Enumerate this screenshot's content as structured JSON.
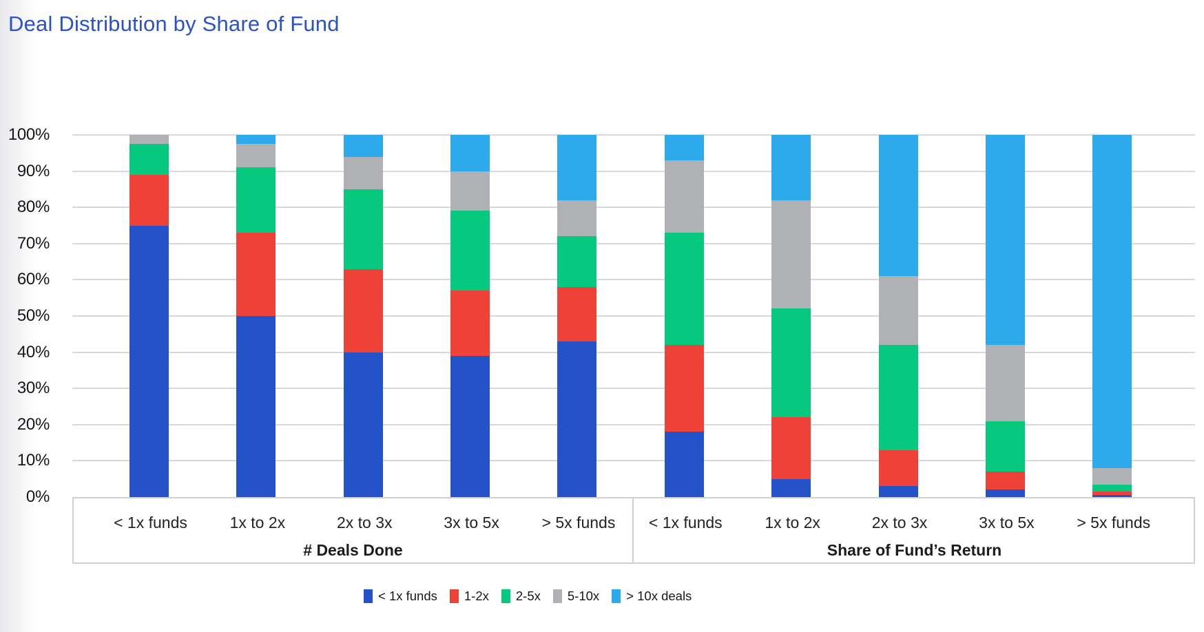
{
  "title": "Deal Distribution by Share of Fund",
  "colors": {
    "title": "#2b51ce",
    "axis_text": "#17171b",
    "grid": "#d8d8dc",
    "box_border": "#cfcfd4",
    "background": "#ffffff",
    "edge_fade": "#e9e9ec"
  },
  "chart_data": {
    "type": "bar",
    "stacked": true,
    "percent": true,
    "ylim": [
      0,
      100
    ],
    "grid": true,
    "legend_position": "bottom",
    "yticks": [
      "0%",
      "10%",
      "20%",
      "30%",
      "40%",
      "50%",
      "60%",
      "70%",
      "80%",
      "90%",
      "100%"
    ],
    "groups": [
      {
        "label": "# Deals Done",
        "categories": [
          "< 1x funds",
          "1x to 2x",
          "2x to 3x",
          "3x to 5x",
          "> 5x funds"
        ]
      },
      {
        "label": "Share of Fund’s Return",
        "categories": [
          "< 1x funds",
          "1x to 2x",
          "2x to 3x",
          "3x to 5x",
          "> 5x funds"
        ]
      }
    ],
    "series": [
      {
        "name": "< 1x funds",
        "color": "#2452c9",
        "values": [
          75,
          50,
          40,
          39,
          43,
          18,
          5,
          3,
          2,
          0.5
        ]
      },
      {
        "name": "1-2x",
        "color": "#ee4137",
        "values": [
          14,
          23,
          23,
          18,
          15,
          24,
          17,
          10,
          5,
          1
        ]
      },
      {
        "name": "2-5x",
        "color": "#07c87f",
        "values": [
          8.5,
          18,
          22,
          22,
          14,
          31,
          30,
          29,
          14,
          2
        ]
      },
      {
        "name": "5-10x",
        "color": "#afb1b5",
        "values": [
          2.5,
          6.5,
          9,
          11,
          10,
          20,
          30,
          19,
          21,
          4.5
        ]
      },
      {
        "name": "> 10x deals",
        "color": "#2daaec",
        "values": [
          0,
          2.5,
          6,
          10,
          18,
          7,
          18,
          39,
          58,
          92
        ]
      }
    ]
  }
}
